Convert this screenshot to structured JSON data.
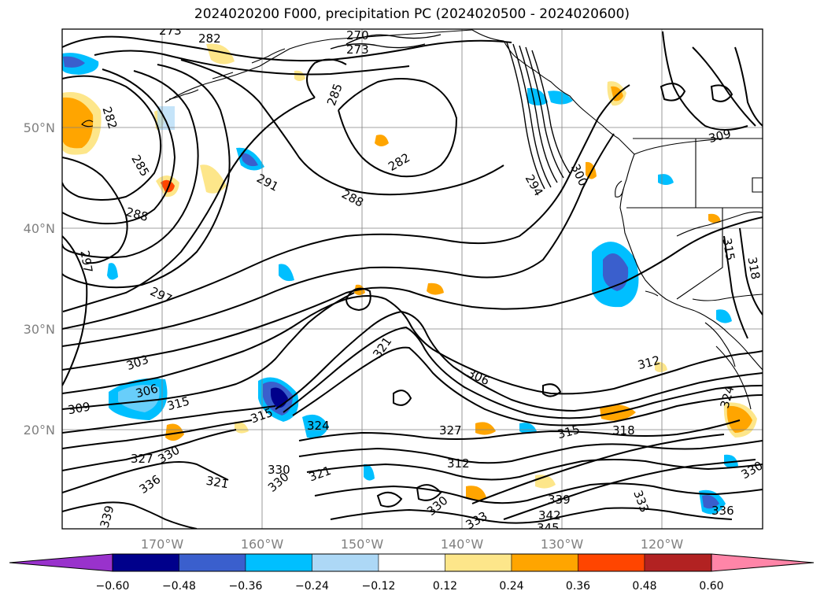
{
  "title": "2024020200 F000, precipitation PC (2024020500 - 2024020600)",
  "colors": {
    "contour": "#000000",
    "grid": "#808080",
    "coast": "#000000"
  },
  "latitude_labels": [
    "50°N",
    "40°N",
    "30°N",
    "20°N"
  ],
  "longitude_labels": [
    "170°W",
    "160°W",
    "150°W",
    "140°W",
    "130°W",
    "120°W"
  ],
  "colorbar": {
    "ticks": [
      "−0.60",
      "−0.48",
      "−0.36",
      "−0.24",
      "−0.12",
      "0.12",
      "0.24",
      "0.36",
      "0.48",
      "0.60"
    ],
    "colors": [
      "#9932cc",
      "#00008b",
      "#3a5fcd",
      "#00bfff",
      "#add8f6",
      "#ffffff",
      "#fde68a",
      "#ffa500",
      "#ff4500",
      "#b22222",
      "#ff85a8"
    ]
  },
  "contour_labels": [
    "273",
    "282",
    "270",
    "273",
    "285",
    "282",
    "282",
    "285",
    "291",
    "288",
    "288",
    "294",
    "300",
    "309",
    "297",
    "297",
    "303",
    "306",
    "309",
    "315",
    "321",
    "324",
    "327",
    "330",
    "330",
    "336",
    "321",
    "321",
    "330",
    "327",
    "312",
    "306",
    "315",
    "318",
    "312",
    "324",
    "339",
    "342",
    "345",
    "333",
    "336",
    "330",
    "339",
    "330",
    "333",
    "315",
    "318",
    "315"
  ]
}
